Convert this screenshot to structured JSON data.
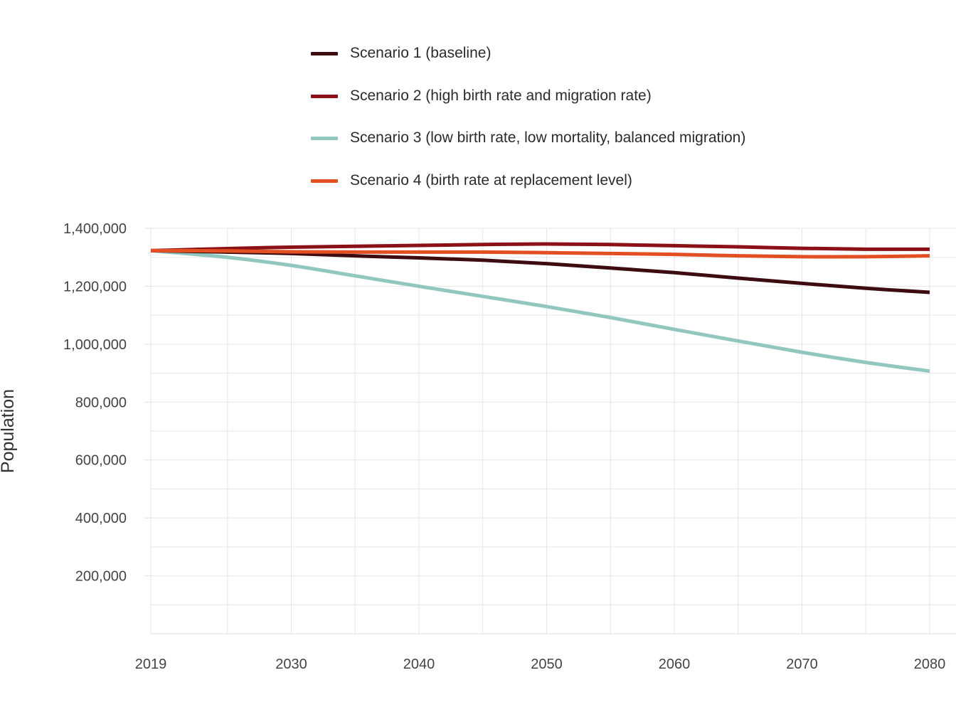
{
  "chart_data": {
    "type": "line",
    "title": "",
    "xlabel": "",
    "ylabel": "Population",
    "xlim": [
      2019,
      2080
    ],
    "ylim": [
      0,
      1400000
    ],
    "x_ticks": [
      2019,
      2030,
      2040,
      2050,
      2060,
      2070,
      2080
    ],
    "x_tick_labels": [
      "2019",
      "2030",
      "2040",
      "2050",
      "2060",
      "2070",
      "2080"
    ],
    "x_minor_gridlines": [
      2025,
      2035,
      2045,
      2055,
      2065,
      2075
    ],
    "y_ticks": [
      200000,
      400000,
      600000,
      800000,
      1000000,
      1200000,
      1400000
    ],
    "y_tick_labels": [
      "200,000",
      "400,000",
      "600,000",
      "800,000",
      "1,000,000",
      "1,200,000",
      "1,400,000"
    ],
    "y_minor_gridlines": [
      100000,
      300000,
      500000,
      700000,
      900000,
      1100000,
      1300000
    ],
    "grid": true,
    "legend_position": "top",
    "x": [
      2019,
      2025,
      2030,
      2035,
      2040,
      2045,
      2050,
      2055,
      2060,
      2065,
      2070,
      2075,
      2080
    ],
    "series": [
      {
        "name": "Scenario 1 (baseline)",
        "color": "#3d0c11",
        "values": [
          1323000,
          1318000,
          1313000,
          1305000,
          1298000,
          1290000,
          1278000,
          1263000,
          1247000,
          1228000,
          1210000,
          1193000,
          1179000
        ]
      },
      {
        "name": "Scenario 2 (high birth rate and migration rate)",
        "color": "#8b1117",
        "values": [
          1323000,
          1330000,
          1335000,
          1338000,
          1341000,
          1344000,
          1346000,
          1344000,
          1340000,
          1336000,
          1331000,
          1328000,
          1328000
        ]
      },
      {
        "name": "Scenario 3 (low birth rate, low mortality, balanced migration)",
        "color": "#92c7c0",
        "values": [
          1323000,
          1300000,
          1272000,
          1236000,
          1200000,
          1165000,
          1130000,
          1092000,
          1051000,
          1011000,
          972000,
          937000,
          907000
        ]
      },
      {
        "name": "Scenario 4 (birth rate at replacement level)",
        "color": "#e24f22",
        "values": [
          1323000,
          1322000,
          1319000,
          1318000,
          1318000,
          1318000,
          1316000,
          1313000,
          1310000,
          1305000,
          1302000,
          1302000,
          1305000
        ]
      }
    ]
  }
}
